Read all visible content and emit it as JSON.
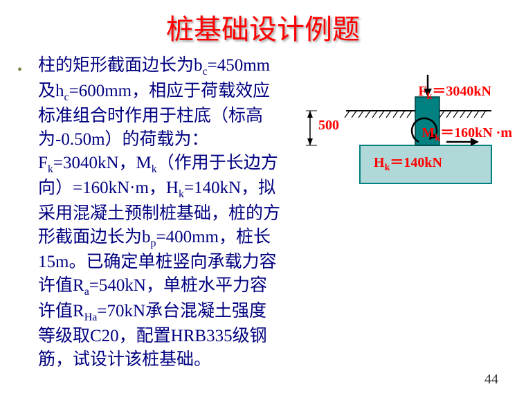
{
  "title": "桩基础设计例题",
  "body_html": "柱的矩形截面边长为b<sub>c</sub>=450mm及h<sub>c</sub>=600mm，相应于荷载效应标准组合时作用于柱底（标高为-0.50m）的荷载为：F<sub>k</sub>=3040kN，M<sub>k</sub>（作用于长边方向）=160kN·m，H<sub>k</sub>=140kN，拟采用混凝土预制桩基础，桩的方形截面边长为b<sub>p</sub>=400mm，桩长15m。已确定单桩竖向承载力容许值R<sub>a</sub>=540kN，单桩水平力容许值R<sub>Ha</sub>=70kN承台混凝土强度等级取C20，配置HRB335级钢筋，试设计该桩基础。",
  "labels": {
    "fk": "F<sub>k</sub>＝3040kN",
    "mk": "M<sub>k</sub>＝160kN ·m",
    "hk": "H<sub>k</sub>＝140kN",
    "depth": "500"
  },
  "page_number": "44",
  "diagram": {
    "column_color": "#008080",
    "footing_fill": "#b0d8d8",
    "footing_stroke": "#008080",
    "label_color": "#ff0000",
    "ground_line_color": "#000000",
    "dimension_color": "#000000"
  }
}
